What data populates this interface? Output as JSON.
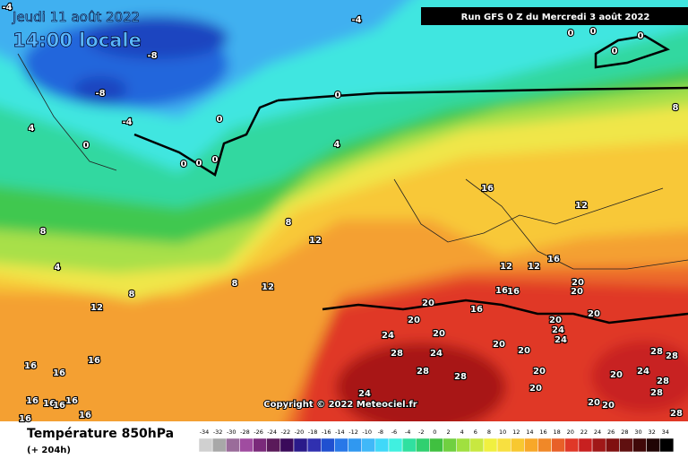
{
  "header": {
    "date": "Jeudi 11 août 2022",
    "time": "14:00 locale",
    "run": "Run GFS 0 Z du Mercredi 3 août 2022"
  },
  "map": {
    "copyright": "Copyright © 2022 Meteociel.fr",
    "contour_labels": [
      -4,
      -4,
      -8,
      -8,
      -4,
      0,
      0,
      0,
      0,
      0,
      0,
      4,
      4,
      8,
      8,
      8,
      8,
      12,
      12,
      12,
      4,
      16,
      12,
      12,
      12,
      16,
      20,
      16,
      16,
      16,
      20,
      20,
      24,
      20,
      20,
      24,
      28,
      28,
      28,
      24,
      20,
      20,
      20,
      20,
      24,
      24,
      20,
      20,
      28,
      28,
      24,
      20,
      28,
      28,
      20,
      20,
      28,
      16,
      16,
      16,
      16,
      16,
      16,
      16,
      16,
      16,
      8,
      0,
      0,
      0,
      0
    ]
  },
  "legend": {
    "title": "Température 850hPa",
    "lead": "(+ 204h)",
    "scale": [
      -34,
      -32,
      -30,
      -28,
      -26,
      -24,
      -22,
      -20,
      -18,
      -16,
      -14,
      -12,
      -10,
      -8,
      -6,
      -4,
      -2,
      0,
      2,
      4,
      6,
      8,
      10,
      12,
      14,
      16,
      18,
      20,
      22,
      24,
      26,
      28,
      30,
      32,
      34
    ],
    "colors": [
      "#d0d0d0",
      "#a8a8a8",
      "#9a6c9a",
      "#a04ca0",
      "#7a2a7a",
      "#5a1a5a",
      "#3a0a5a",
      "#2a1a8a",
      "#3030b0",
      "#2050d0",
      "#2878e8",
      "#3098f0",
      "#40b8f8",
      "#40d8f8",
      "#40f0e0",
      "#30e0a0",
      "#30d070",
      "#40c040",
      "#70d040",
      "#a0e040",
      "#c8e840",
      "#f0f040",
      "#f8e040",
      "#f8c830",
      "#f8a828",
      "#f08828",
      "#e86028",
      "#e03828",
      "#c82020",
      "#a01818",
      "#801010",
      "#601010",
      "#400808",
      "#200404",
      "#000000"
    ]
  }
}
